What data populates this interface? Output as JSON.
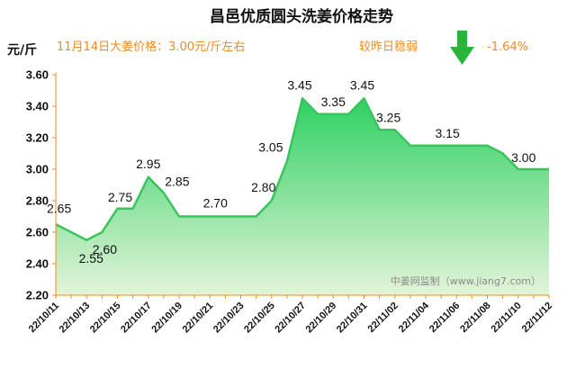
{
  "chart_data": {
    "type": "area",
    "title": "昌邑优质圆头洗姜价格走势",
    "ylabel": "元/斤",
    "ylim": [
      2.2,
      3.6
    ],
    "yticks": [
      "2.20",
      "2.40",
      "2.60",
      "2.80",
      "3.00",
      "3.20",
      "3.40",
      "3.60"
    ],
    "grid": false,
    "x": [
      "22/10/11",
      "22/10/12",
      "22/10/13",
      "22/10/14",
      "22/10/15",
      "22/10/16",
      "22/10/17",
      "22/10/18",
      "22/10/19",
      "22/10/20",
      "22/10/21",
      "22/10/22",
      "22/10/23",
      "22/10/24",
      "22/10/25",
      "22/10/26",
      "22/10/27",
      "22/10/28",
      "22/10/29",
      "22/10/30",
      "22/10/31",
      "22/11/01",
      "22/11/02",
      "22/11/03",
      "22/11/04",
      "22/11/05",
      "22/11/06",
      "22/11/07",
      "22/11/08",
      "22/11/09",
      "22/11/10",
      "22/11/11",
      "22/11/12"
    ],
    "xtick_labels": [
      "22/10/11",
      "22/10/13",
      "22/10/15",
      "22/10/17",
      "22/10/19",
      "22/10/21",
      "22/10/23",
      "22/10/25",
      "22/10/27",
      "22/10/29",
      "22/10/31",
      "22/11/02",
      "22/11/04",
      "22/11/06",
      "22/11/08",
      "22/11/10",
      "22/11/12"
    ],
    "values": [
      2.65,
      2.6,
      2.55,
      2.6,
      2.75,
      2.75,
      2.95,
      2.85,
      2.7,
      2.7,
      2.7,
      2.7,
      2.7,
      2.7,
      2.8,
      3.05,
      3.45,
      3.35,
      3.35,
      3.35,
      3.45,
      3.25,
      3.25,
      3.15,
      3.15,
      3.15,
      3.15,
      3.15,
      3.15,
      3.1,
      3.0,
      3.0,
      3.0
    ],
    "data_labels": [
      {
        "index": 0,
        "text": "2.65"
      },
      {
        "index": 2,
        "text": "2.55"
      },
      {
        "index": 4,
        "text": "2.75"
      },
      {
        "index": 3,
        "text": "2.60"
      },
      {
        "index": 6,
        "text": "2.95"
      },
      {
        "index": 7,
        "text": "2.85"
      },
      {
        "index": 10,
        "text": "2.70"
      },
      {
        "index": 14,
        "text": "2.80"
      },
      {
        "index": 15,
        "text": "3.05"
      },
      {
        "index": 16,
        "text": "3.45"
      },
      {
        "index": 18,
        "text": "3.35"
      },
      {
        "index": 20,
        "text": "3.45"
      },
      {
        "index": 21,
        "text": "3.25"
      },
      {
        "index": 25,
        "text": "3.15"
      },
      {
        "index": 30,
        "text": "3.00"
      }
    ],
    "info_left": "11月14日大姜价格：3.00元/斤左右",
    "info_right": "较昨日稳弱",
    "change": "-1.64%",
    "watermark": "中姜网监制（www.jiang7.com）",
    "colors": {
      "line": "#3ac45c",
      "fill_top": "#2fd063",
      "fill_bottom": "#dff3d6",
      "info": "#f08a24",
      "arrow": "#28b53a"
    }
  }
}
